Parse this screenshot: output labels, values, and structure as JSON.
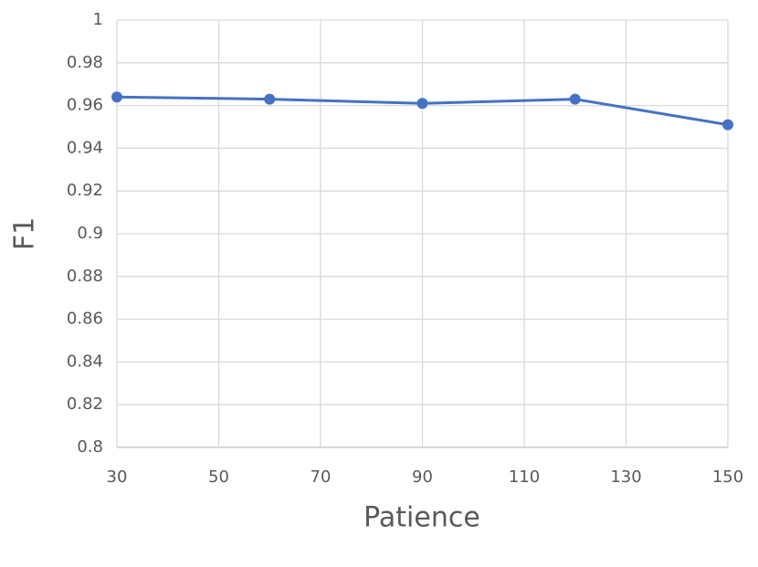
{
  "chart_data": {
    "type": "line",
    "x_label": "Patience",
    "y_label": "F1",
    "x": [
      30,
      60,
      90,
      120,
      150
    ],
    "series": [
      {
        "name": "F1",
        "color": "#4472c4",
        "values": [
          0.964,
          0.963,
          0.961,
          0.963,
          0.951
        ]
      }
    ],
    "xlim": [
      30,
      150
    ],
    "xticks": [
      30,
      50,
      70,
      90,
      110,
      130,
      150
    ],
    "ylim": [
      0.8,
      1
    ],
    "yticks": [
      0.8,
      0.82,
      0.84,
      0.86,
      0.88,
      0.9,
      0.92,
      0.94,
      0.96,
      0.98,
      1
    ],
    "grid": true
  }
}
